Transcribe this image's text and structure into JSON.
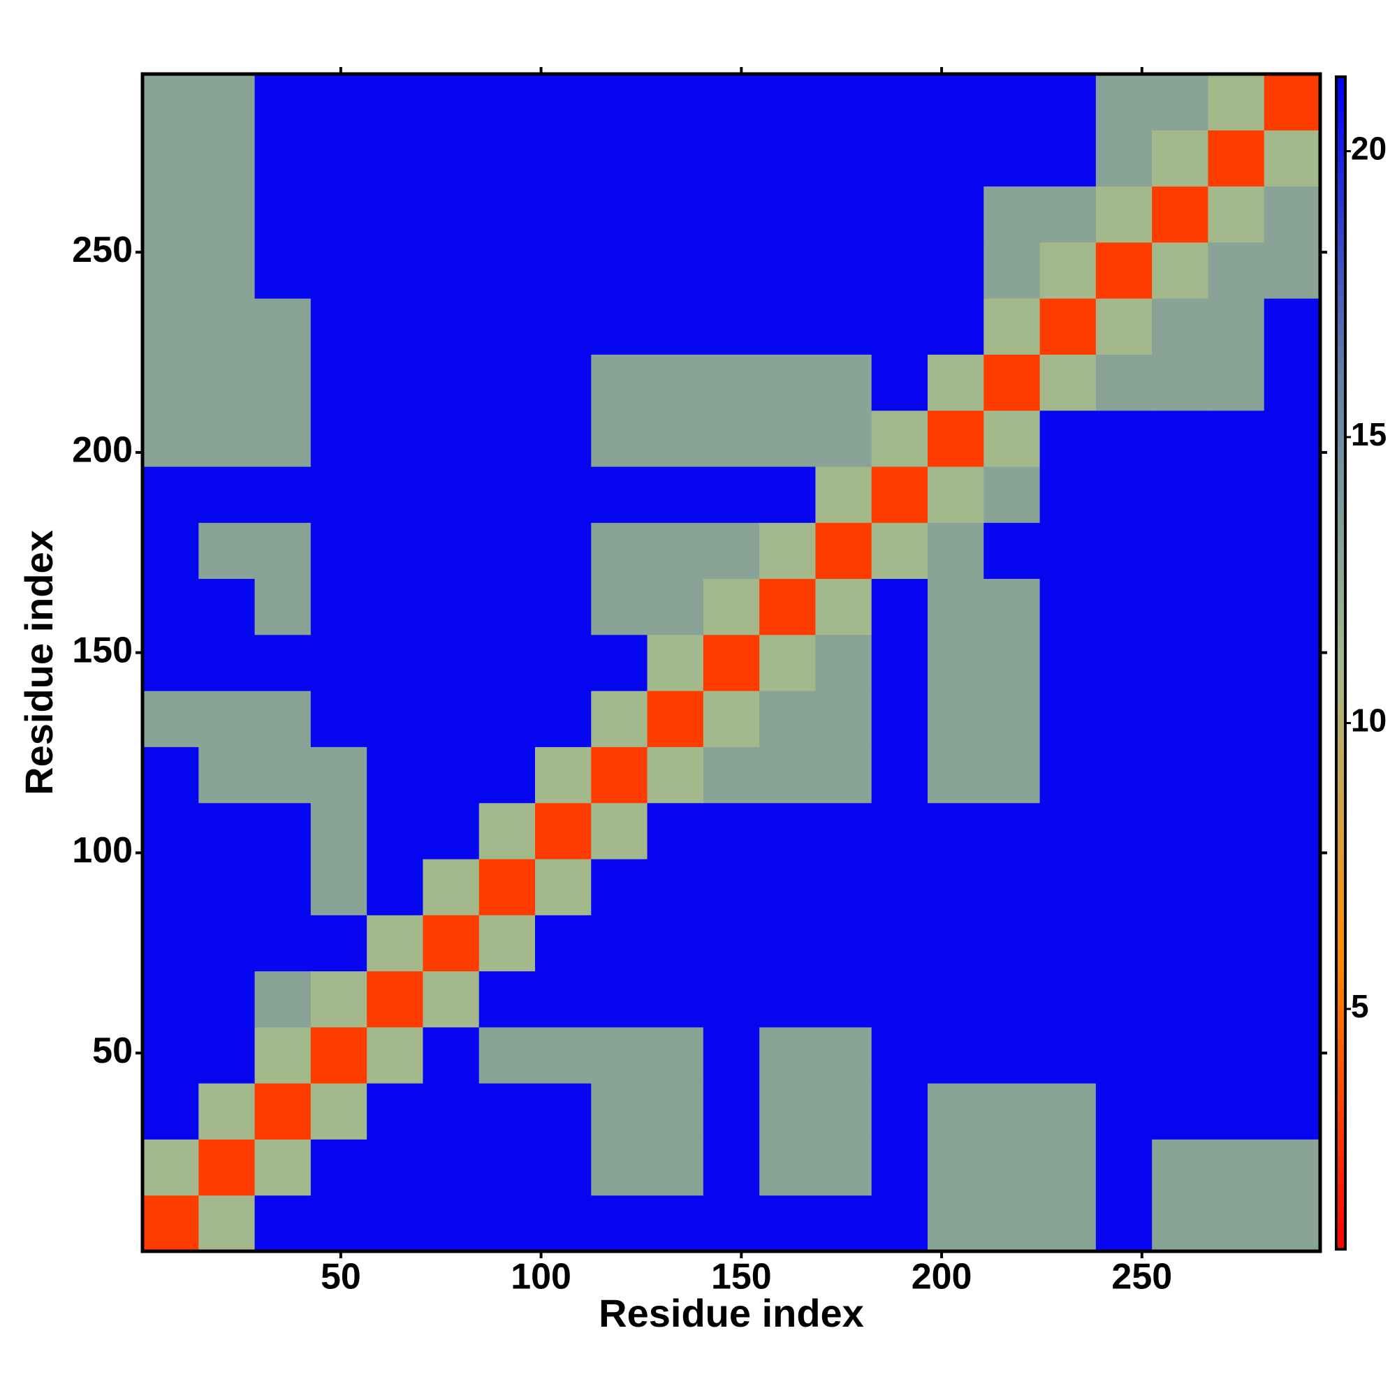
{
  "chart_data": {
    "type": "heatmap",
    "xlabel": "Residue index",
    "ylabel": "Residue index",
    "xlim": [
      0.5,
      294.5
    ],
    "ylim": [
      0.5,
      294.5
    ],
    "xticks": [
      50,
      100,
      150,
      200,
      250
    ],
    "yticks": [
      50,
      100,
      150,
      200,
      250
    ],
    "zlim": [
      0.8,
      21.3
    ],
    "zticks": [
      5,
      10,
      15,
      20
    ],
    "colors": [
      "#ff0000",
      "#ff8c00",
      "#a3b98c",
      "#5f7fa6",
      "#0000f5"
    ],
    "x": [
      7.5,
      21.5,
      35.5,
      49.5,
      63.5,
      77.5,
      91.5,
      105.5,
      119.5,
      133.5,
      147.5,
      161.5,
      175.5,
      189.5,
      203.5,
      217.5,
      231.5,
      245.5,
      259.5,
      273.5,
      287.5
    ],
    "y": [
      7.5,
      21.5,
      35.5,
      49.5,
      63.5,
      77.5,
      91.5,
      105.5,
      119.5,
      133.5,
      147.5,
      161.5,
      175.5,
      189.5,
      203.5,
      217.5,
      231.5,
      245.5,
      259.5,
      273.5,
      287.5
    ],
    "z": [
      [
        3,
        11,
        21,
        21,
        21,
        21,
        21,
        21,
        21,
        21,
        21,
        21,
        21,
        21,
        13,
        13,
        13,
        21,
        13,
        13,
        13
      ],
      [
        11,
        3,
        11,
        21,
        21,
        21,
        21,
        21,
        13,
        13,
        21,
        13,
        13,
        21,
        13,
        13,
        13,
        21,
        13,
        13,
        13
      ],
      [
        21,
        11,
        3,
        11,
        21,
        21,
        21,
        21,
        13,
        13,
        21,
        13,
        13,
        21,
        13,
        13,
        13,
        21,
        21,
        21,
        21
      ],
      [
        21,
        21,
        11,
        3,
        11,
        21,
        13,
        13,
        13,
        13,
        21,
        13,
        13,
        21,
        21,
        21,
        21,
        21,
        21,
        21,
        21
      ],
      [
        21,
        21,
        13,
        11,
        3,
        11,
        21,
        21,
        21,
        21,
        21,
        21,
        21,
        21,
        21,
        21,
        21,
        21,
        21,
        21,
        21
      ],
      [
        21,
        21,
        21,
        21,
        11,
        3,
        11,
        21,
        21,
        21,
        21,
        21,
        21,
        21,
        21,
        21,
        21,
        21,
        21,
        21,
        21
      ],
      [
        21,
        21,
        21,
        13,
        21,
        11,
        3,
        11,
        21,
        21,
        21,
        21,
        21,
        21,
        21,
        21,
        21,
        21,
        21,
        21,
        21
      ],
      [
        21,
        21,
        21,
        13,
        21,
        21,
        11,
        3,
        11,
        21,
        21,
        21,
        21,
        21,
        21,
        21,
        21,
        21,
        21,
        21,
        21
      ],
      [
        21,
        13,
        13,
        13,
        21,
        21,
        21,
        11,
        3,
        11,
        13,
        13,
        13,
        21,
        13,
        13,
        21,
        21,
        21,
        21,
        21
      ],
      [
        13,
        13,
        13,
        21,
        21,
        21,
        21,
        21,
        11,
        3,
        11,
        13,
        13,
        21,
        13,
        13,
        21,
        21,
        21,
        21,
        21
      ],
      [
        21,
        21,
        21,
        21,
        21,
        21,
        21,
        21,
        21,
        11,
        3,
        11,
        13,
        21,
        13,
        13,
        21,
        21,
        21,
        21,
        21
      ],
      [
        21,
        21,
        13,
        21,
        21,
        21,
        21,
        21,
        13,
        13,
        11,
        3,
        11,
        21,
        13,
        13,
        21,
        21,
        21,
        21,
        21
      ],
      [
        21,
        13,
        13,
        21,
        21,
        21,
        21,
        21,
        13,
        13,
        13,
        11,
        3,
        11,
        13,
        21,
        21,
        21,
        21,
        21,
        21
      ],
      [
        21,
        21,
        21,
        21,
        21,
        21,
        21,
        21,
        21,
        21,
        21,
        21,
        11,
        3,
        11,
        13,
        21,
        21,
        21,
        21,
        21
      ],
      [
        13,
        13,
        13,
        21,
        21,
        21,
        21,
        21,
        13,
        13,
        13,
        13,
        13,
        11,
        3,
        11,
        21,
        21,
        21,
        21,
        21
      ],
      [
        13,
        13,
        13,
        21,
        21,
        21,
        21,
        21,
        13,
        13,
        13,
        13,
        13,
        21,
        11,
        3,
        11,
        13,
        13,
        13,
        21
      ],
      [
        13,
        13,
        13,
        21,
        21,
        21,
        21,
        21,
        21,
        21,
        21,
        21,
        21,
        21,
        21,
        11,
        3,
        11,
        13,
        13,
        21
      ],
      [
        13,
        13,
        21,
        21,
        21,
        21,
        21,
        21,
        21,
        21,
        21,
        21,
        21,
        21,
        21,
        13,
        11,
        3,
        11,
        13,
        13
      ],
      [
        13,
        13,
        21,
        21,
        21,
        21,
        21,
        21,
        21,
        21,
        21,
        21,
        21,
        21,
        21,
        13,
        13,
        11,
        3,
        11,
        13
      ],
      [
        13,
        13,
        21,
        21,
        21,
        21,
        21,
        21,
        21,
        21,
        21,
        21,
        21,
        21,
        21,
        21,
        21,
        13,
        11,
        3,
        11
      ],
      [
        13,
        13,
        21,
        21,
        21,
        21,
        21,
        21,
        21,
        21,
        21,
        21,
        21,
        21,
        21,
        21,
        21,
        13,
        13,
        11,
        3
      ]
    ]
  }
}
